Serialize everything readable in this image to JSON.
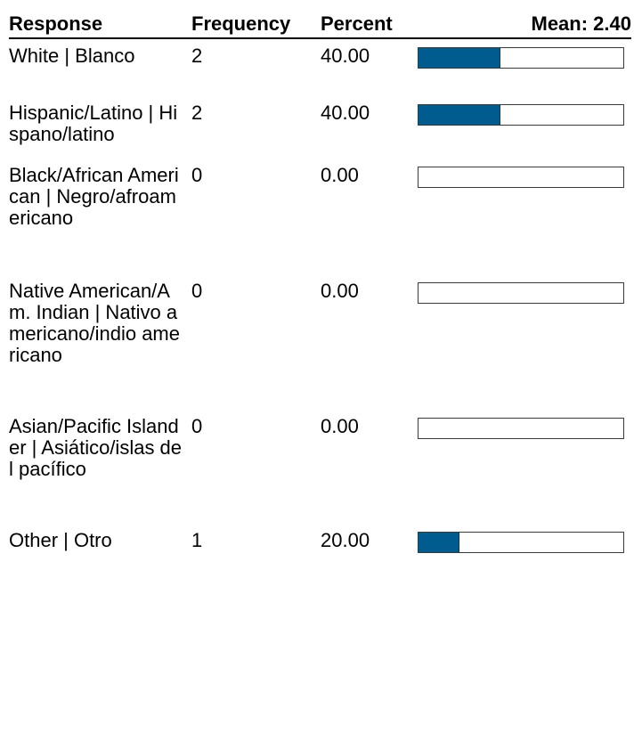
{
  "header": {
    "response": "Response",
    "frequency": "Frequency",
    "percent": "Percent",
    "mean": "Mean: 2.40"
  },
  "chart_data": {
    "type": "bar",
    "categories": [
      "White | Blanco",
      "Hispanic/Latino | Hispano/latino",
      "Black/African American | Negro/afroamericano",
      "Native American/Am. Indian | Nativo americano/indio americano",
      "Asian/Pacific Islander | Asiático/islas del pacífico",
      "Other | Otro"
    ],
    "frequencies": [
      "2",
      "2",
      "0",
      "0",
      "0",
      "1"
    ],
    "percents": [
      "40.00",
      "40.00",
      "0.00",
      "0.00",
      "0.00",
      "20.00"
    ],
    "values": [
      40,
      40,
      0,
      0,
      0,
      20
    ],
    "xlim": [
      0,
      100
    ],
    "bar_color": "#005c8f"
  }
}
